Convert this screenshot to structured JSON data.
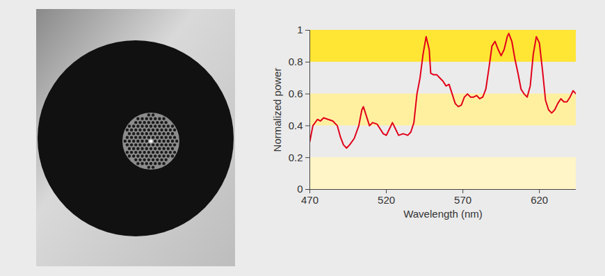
{
  "chart_data": {
    "type": "line",
    "x_label": "Wavelength (nm)",
    "y_label": "Normalized power",
    "color": "#e2001a",
    "grid": true,
    "xlim": [
      470,
      644
    ],
    "xticks": [
      470,
      520,
      570,
      620
    ],
    "ylim": [
      0,
      1
    ],
    "yticks": [
      0,
      0.2,
      0.4,
      0.6,
      0.8,
      1
    ],
    "x": [
      470,
      472,
      475,
      477,
      479,
      482,
      485,
      488,
      490,
      492,
      494,
      496,
      499,
      502,
      504,
      505,
      507,
      509,
      511,
      514,
      516,
      518,
      520,
      522,
      524,
      526,
      528,
      531,
      534,
      536,
      538,
      540,
      542,
      544,
      546,
      548,
      549,
      551,
      553,
      555,
      557,
      559,
      561,
      563,
      565,
      567,
      569,
      571,
      573,
      575,
      577,
      579,
      581,
      583,
      585,
      587,
      589,
      591,
      593,
      595,
      597,
      599,
      600,
      602,
      604,
      606,
      608,
      610,
      612,
      614,
      616,
      618,
      620,
      622,
      624,
      626,
      628,
      630,
      632,
      634,
      636,
      638,
      640,
      642,
      644
    ],
    "values": [
      0.3,
      0.4,
      0.44,
      0.43,
      0.45,
      0.44,
      0.43,
      0.4,
      0.33,
      0.28,
      0.26,
      0.28,
      0.32,
      0.4,
      0.5,
      0.52,
      0.46,
      0.4,
      0.42,
      0.41,
      0.38,
      0.35,
      0.34,
      0.38,
      0.42,
      0.38,
      0.34,
      0.35,
      0.34,
      0.36,
      0.42,
      0.6,
      0.7,
      0.85,
      0.96,
      0.88,
      0.73,
      0.72,
      0.72,
      0.7,
      0.68,
      0.65,
      0.66,
      0.6,
      0.54,
      0.52,
      0.53,
      0.58,
      0.6,
      0.58,
      0.58,
      0.59,
      0.57,
      0.58,
      0.63,
      0.76,
      0.9,
      0.93,
      0.88,
      0.84,
      0.88,
      0.96,
      0.98,
      0.93,
      0.82,
      0.73,
      0.63,
      0.6,
      0.58,
      0.65,
      0.85,
      0.96,
      0.92,
      0.75,
      0.56,
      0.5,
      0.48,
      0.5,
      0.54,
      0.57,
      0.55,
      0.55,
      0.58,
      0.62,
      0.6
    ]
  }
}
